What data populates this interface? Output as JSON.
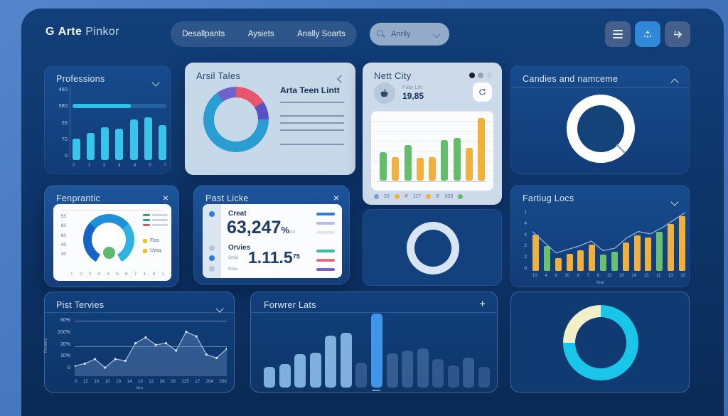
{
  "header": {
    "logo_icon": "G",
    "logo_bold": "Arte",
    "logo_light": "Pinkor",
    "nav": [
      "Desallpants",
      "Aysiets",
      "Anally Soarts"
    ],
    "search_value": "Anrily"
  },
  "cards": {
    "professions": {
      "title": "Professions",
      "y_labels": [
        "460",
        "580",
        "26",
        "70",
        "0"
      ],
      "progress_pct": 62,
      "x_labels": [
        "0",
        "1",
        "2",
        "4",
        "4",
        "5",
        "7"
      ],
      "chart": {
        "type": "vbars",
        "color": "#38c5ec",
        "width": 11,
        "radius": 3,
        "values": [
          43,
          54,
          66,
          63,
          81,
          86,
          70
        ]
      }
    },
    "arsil_tales": {
      "title": "Arsil Tales",
      "heading": "Arta Teen Lintt",
      "donut": {
        "type": "donut",
        "hole": "#c7d9e9",
        "inset": 15,
        "segments": [
          {
            "color": "#e8566b",
            "pct": 16
          },
          {
            "color": "#5751c5",
            "pct": 9
          },
          {
            "color": "#2a9ed3",
            "pct": 65
          },
          {
            "color": "#6f63c9",
            "pct": 10
          }
        ]
      },
      "line_offsets": [
        55,
        74,
        84,
        94,
        114
      ]
    },
    "nett_city": {
      "title": "Nett City",
      "pager_dots": [
        "#1c1f24",
        "#8fa3b8",
        "#c2cfdd"
      ],
      "stat_label": "Fabr Litt",
      "stat_value": "19,85",
      "chart": {
        "type": "vbars",
        "width": 10,
        "radius": 3,
        "values": [
          44,
          37,
          56,
          36,
          37,
          63,
          67,
          51,
          98
        ],
        "colors": [
          "#63bd6a",
          "#f2b03c",
          "#63bd6a",
          "#f2b03c",
          "#f2b03c",
          "#63bd6a",
          "#63bd6a",
          "#f2b03c",
          "#f2b03c"
        ]
      },
      "legend": [
        {
          "dot": "#7b9fd4"
        },
        {
          "text": "20"
        },
        {
          "dot": "#f2b03c"
        },
        {
          "text": "4'"
        },
        {
          "text": "117"
        },
        {
          "dot": "#f2b03c"
        },
        {
          "text": "6'"
        },
        {
          "text": "203"
        },
        {
          "dot": "#63bd6a"
        }
      ]
    },
    "candies": {
      "title": "Candies and namceme",
      "donut": {
        "type": "donut",
        "hole": "#134379",
        "inset": 15,
        "segments": [
          {
            "color": "#ffffff",
            "pct": 37
          },
          {
            "color": "#9aaec6",
            "pct": 1
          },
          {
            "color": "#ffffff",
            "pct": 62
          }
        ]
      }
    },
    "fenprantic": {
      "title": "Fenprantic",
      "y_labels": [
        "55",
        "80",
        "60",
        "40",
        "30"
      ],
      "x_labels": [
        "1",
        "2",
        "3",
        "4",
        "4",
        "5",
        "6",
        "7",
        "1",
        "8",
        "1"
      ],
      "gauge": {
        "type": "donut",
        "from": 210,
        "hole": "#ffffff",
        "inset": 12,
        "segments": [
          {
            "color": "#1565c8",
            "pct": 28
          },
          {
            "color": "#1f90d8",
            "pct": 28
          },
          {
            "color": "#2db3e0",
            "pct": 27.3
          },
          {
            "color": "rgba(0,0,0,0)",
            "pct": 16.7
          }
        ]
      },
      "dot_color": "#5cb86e",
      "mini_legend": [
        "#3aa35f",
        "#2aa198",
        "#d9534f"
      ],
      "legend": [
        "Fiss",
        "Uvsq"
      ]
    },
    "past_licke": {
      "title": "Past Licke",
      "strip_dots": [
        {
          "c": "#2e7cd6",
          "y": 10
        },
        {
          "c": "#b9c5d3",
          "y": 58
        },
        {
          "c": "#2e7cd6",
          "y": 72
        },
        {
          "c": "#b9c5d3",
          "y": 87
        }
      ],
      "stat1": {
        "label": "Creat",
        "value": "63,247",
        "suffix": "%",
        "sub": "cnt"
      },
      "lines1": [
        "#2e7cd6",
        "#b9bce8",
        "#e2e6ec"
      ],
      "stat2": {
        "label": "Orvies",
        "sub1": "Orlid",
        "sub2": "Nola",
        "value": "1.11.5",
        "sup": "75"
      },
      "lines2": [
        "#2fbf9a",
        "#e8697a",
        "#7a5fd0"
      ]
    },
    "mid_donut": {
      "donut": {
        "type": "donut",
        "hole": "#12417e",
        "inset": 11,
        "segments": [
          {
            "color": "#d7e5f4",
            "pct": 100
          }
        ]
      }
    },
    "fartiug_locs": {
      "title": "Fartiug Locs",
      "y_labels": [
        "1",
        "4",
        "4",
        "2",
        "2",
        "0"
      ],
      "x_labels": [
        "10",
        "4",
        "8",
        "10",
        "8",
        "7",
        "8",
        "13",
        "10",
        "14",
        "13",
        "11",
        "13",
        "10"
      ],
      "x_title": "Year",
      "chart": {
        "type": "vbars",
        "width": 9,
        "radius": 2,
        "values": [
          61,
          42,
          22,
          29,
          35,
          44,
          27,
          32,
          48,
          60,
          56,
          65,
          78,
          92
        ],
        "colors": [
          "#f0b03f",
          "#6cbf6e",
          "#f0b03f",
          "#f0b03f",
          "#f0b03f",
          "#f0b03f",
          "#6cbf6e",
          "#6cbf6e",
          "#f0b03f",
          "#f0b03f",
          "#f0b03f",
          "#6cbf6e",
          "#f0b03f",
          "#f0b03f"
        ]
      },
      "line": {
        "type": "line",
        "stroke": "#8fb3de",
        "values": [
          66,
          48,
          30,
          36,
          42,
          50,
          34,
          38,
          55,
          66,
          62,
          72,
          85,
          98
        ]
      }
    },
    "pist_tervies": {
      "title": "Pist Tervies",
      "y_labels": [
        "60%",
        "200%",
        "20%",
        "10%",
        "0"
      ],
      "y_title": "Revens",
      "x_labels": [
        "0",
        "12",
        "10",
        "10",
        "18",
        "14",
        "10",
        "12",
        "26",
        "16",
        "225",
        "17",
        "204",
        "209"
      ],
      "x_title": "Nen",
      "area": {
        "type": "area",
        "stroke": "#9fb9dc",
        "fill": "rgba(125,160,210,0.32)",
        "dots": "#d7e5f5",
        "values": [
          18,
          22,
          30,
          15,
          30,
          27,
          58,
          68,
          55,
          58,
          45,
          78,
          70,
          38,
          32,
          48
        ]
      }
    },
    "forwrer_lats": {
      "title": "Forwrer Lats",
      "chart": {
        "type": "vbars",
        "width": 16,
        "radius": 5,
        "values": [
          28,
          32,
          45,
          47,
          70,
          74,
          34,
          100,
          46,
          50,
          53,
          38,
          30,
          40,
          28
        ],
        "colors": [
          "#7fb0dd",
          "#7fb0dd",
          "#7fb0dd",
          "#7fb0dd",
          "#7fb0dd",
          "#7fb0dd",
          "rgba(105,145,200,0.38)",
          "#3f96e8",
          "rgba(105,145,200,0.42)",
          "rgba(105,145,200,0.42)",
          "rgba(105,145,200,0.42)",
          "rgba(105,145,200,0.38)",
          "rgba(105,145,200,0.35)",
          "rgba(105,145,200,0.42)",
          "rgba(105,145,200,0.35)"
        ]
      }
    },
    "br_donut": {
      "donut": {
        "type": "donut",
        "hole": "#0f3b72",
        "inset": 17,
        "segments": [
          {
            "color": "#19c6e8",
            "pct": 75
          },
          {
            "color": "#f3efc7",
            "pct": 25
          }
        ]
      }
    }
  }
}
